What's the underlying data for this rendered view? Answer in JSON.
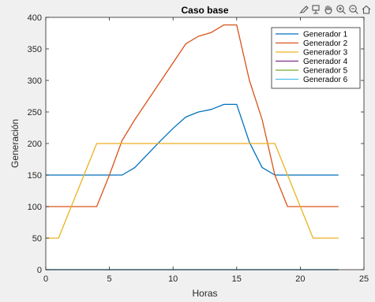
{
  "chart_data": {
    "type": "line",
    "title": "Caso base",
    "xlabel": "Horas",
    "ylabel": "Generación",
    "xlim": [
      0,
      25
    ],
    "ylim": [
      0,
      400
    ],
    "xticks": [
      0,
      5,
      10,
      15,
      20,
      25
    ],
    "yticks": [
      0,
      50,
      100,
      150,
      200,
      250,
      300,
      350,
      400
    ],
    "grid": false,
    "legend_position": "top-right",
    "x": [
      0,
      1,
      2,
      3,
      4,
      5,
      6,
      7,
      8,
      9,
      10,
      11,
      12,
      13,
      14,
      15,
      16,
      17,
      18,
      19,
      20,
      21,
      22,
      23
    ],
    "series": [
      {
        "name": "Generador 1",
        "color": "#0072BD",
        "values": [
          150,
          150,
          150,
          150,
          150,
          150,
          150,
          162,
          183,
          204,
          224,
          242,
          250,
          254,
          262,
          262,
          202,
          162,
          150,
          150,
          150,
          150,
          150,
          150
        ]
      },
      {
        "name": "Generador 2",
        "color": "#D95319",
        "values": [
          100,
          100,
          100,
          100,
          100,
          150,
          205,
          238,
          268,
          298,
          328,
          358,
          370,
          376,
          388,
          388,
          300,
          238,
          150,
          100,
          100,
          100,
          100,
          100
        ]
      },
      {
        "name": "Generador 3",
        "color": "#EDB120",
        "values": [
          50,
          50,
          100,
          150,
          200,
          200,
          200,
          200,
          200,
          200,
          200,
          200,
          200,
          200,
          200,
          200,
          200,
          200,
          200,
          150,
          100,
          50,
          50,
          50
        ]
      },
      {
        "name": "Generador 4",
        "color": "#7E2F8E",
        "values": [
          0,
          0,
          0,
          0,
          0,
          0,
          0,
          0,
          0,
          0,
          0,
          0,
          0,
          0,
          0,
          0,
          0,
          0,
          0,
          0,
          0,
          0,
          0,
          0
        ]
      },
      {
        "name": "Generador 5",
        "color": "#77AC30",
        "values": [
          0,
          0,
          0,
          0,
          0,
          0,
          0,
          0,
          0,
          0,
          0,
          0,
          0,
          0,
          0,
          0,
          0,
          0,
          0,
          0,
          0,
          0,
          0,
          0
        ]
      },
      {
        "name": "Generador 6",
        "color": "#4DBEEE",
        "values": [
          0,
          0,
          0,
          0,
          0,
          0,
          0,
          0,
          0,
          0,
          0,
          0,
          0,
          0,
          0,
          0,
          0,
          0,
          0,
          0,
          0,
          0,
          0,
          0
        ]
      }
    ]
  },
  "toolbar": {
    "icons": [
      "brush-icon",
      "data-tip-icon",
      "pan-hand-icon",
      "zoom-in-icon",
      "zoom-out-icon",
      "home-icon"
    ]
  }
}
